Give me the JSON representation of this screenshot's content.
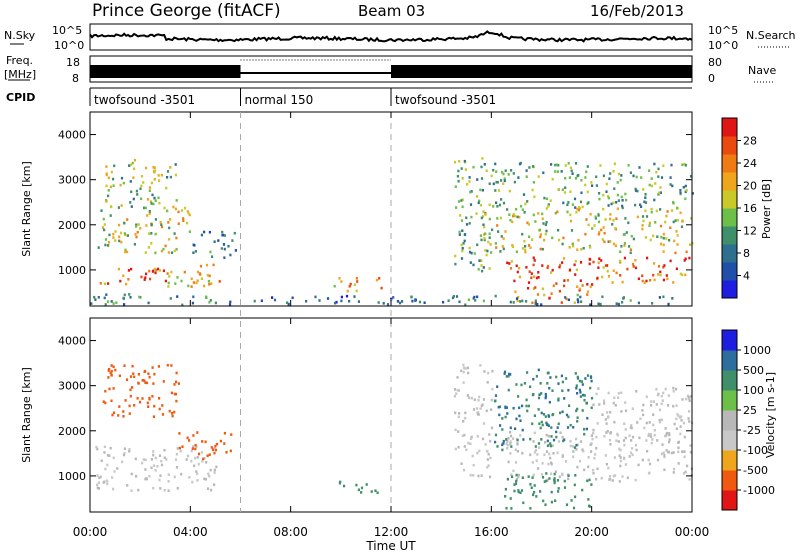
{
  "header": {
    "title": "Prince George (fitACF)",
    "beam": "Beam 03",
    "date": "16/Feb/2013"
  },
  "strip_labels": {
    "nsky": "N.Sky",
    "nsky_hi": "10^5",
    "nsky_lo": "10^0",
    "nsearch": "N.Search",
    "freq": "Freq.",
    "freq_unit": "[MHz]",
    "freq_hi": "18",
    "freq_lo": "8",
    "nave_hi": "80",
    "nave_lo": "0",
    "nave": "Nave",
    "cpid": "CPID"
  },
  "cpid_segments": [
    {
      "label": "twofsound -3501",
      "start_h": 0,
      "end_h": 6
    },
    {
      "label": "normal 150",
      "start_h": 6,
      "end_h": 12
    },
    {
      "label": "twofsound -3501",
      "start_h": 12,
      "end_h": 24
    }
  ],
  "x_axis": {
    "label": "Time UT",
    "ticks": [
      "00:00",
      "04:00",
      "08:00",
      "12:00",
      "16:00",
      "20:00",
      "00:00"
    ]
  },
  "colors": {
    "power": [
      "#1e1ee0",
      "#1f4fa8",
      "#2e6e8e",
      "#3f8f6a",
      "#6cc04a",
      "#c9c92a",
      "#f0a61c",
      "#f07a14",
      "#ea4a10",
      "#e01515"
    ],
    "velocity": [
      "#e01515",
      "#f05a10",
      "#f0a61c",
      "#c8c8c8",
      "#b8b8b8",
      "#6cc04a",
      "#3f8f6a",
      "#2e6e9e",
      "#1e1ee0"
    ]
  },
  "chart_data": [
    {
      "type": "heatmap",
      "ylabel": "Slant Range [km]",
      "yticks": [
        "1000",
        "2000",
        "3000",
        "4000"
      ],
      "ylim": [
        200,
        4500
      ],
      "xlim": [
        0,
        24
      ],
      "colorbar_label": "Power [dB]",
      "colorbar_ticks": [
        "4",
        "8",
        "12",
        "16",
        "20",
        "24",
        "28"
      ],
      "colorbar_range": [
        0,
        30
      ],
      "echo_regions": [
        {
          "t0": 0.0,
          "t1": 5.8,
          "r0": 250,
          "r1": 500,
          "v": 8
        },
        {
          "t0": 0.2,
          "t1": 3.0,
          "r0": 700,
          "r1": 1100,
          "v": 26
        },
        {
          "t0": 3.0,
          "t1": 5.2,
          "r0": 600,
          "r1": 1200,
          "v": 18
        },
        {
          "t0": 0.3,
          "t1": 4.0,
          "r0": 1400,
          "r1": 2400,
          "v": 16
        },
        {
          "t0": 0.5,
          "t1": 3.5,
          "r0": 2400,
          "r1": 3500,
          "v": 14
        },
        {
          "t0": 4.0,
          "t1": 5.8,
          "r0": 1300,
          "r1": 1900,
          "v": 8
        },
        {
          "t0": 9.6,
          "t1": 11.6,
          "r0": 550,
          "r1": 850,
          "v": 20
        },
        {
          "t0": 6.5,
          "t1": 13.0,
          "r0": 250,
          "r1": 450,
          "v": 6
        },
        {
          "t0": 14.5,
          "t1": 16.0,
          "r0": 1000,
          "r1": 3500,
          "v": 12
        },
        {
          "t0": 16.5,
          "t1": 24.0,
          "r0": 700,
          "r1": 1300,
          "v": 24
        },
        {
          "t0": 16.8,
          "t1": 20.0,
          "r0": 300,
          "r1": 700,
          "v": 22
        },
        {
          "t0": 15.5,
          "t1": 24.0,
          "r0": 1400,
          "r1": 2400,
          "v": 16
        },
        {
          "t0": 16.0,
          "t1": 24.0,
          "r0": 2400,
          "r1": 3400,
          "v": 12
        },
        {
          "t0": 12.0,
          "t1": 24.0,
          "r0": 250,
          "r1": 450,
          "v": 8
        }
      ]
    },
    {
      "type": "heatmap",
      "ylabel": "Slant Range [km]",
      "yticks": [
        "1000",
        "2000",
        "3000",
        "4000"
      ],
      "ylim": [
        200,
        4500
      ],
      "xlim": [
        0,
        24
      ],
      "colorbar_label": "Velocity [m s-1]",
      "colorbar_ticks": [
        "1000",
        "500",
        "100",
        "25",
        "-25",
        "-100",
        "-500",
        "-1000"
      ],
      "echo_regions": [
        {
          "t0": 0.2,
          "t1": 5.0,
          "r0": 700,
          "r1": 1700,
          "v": 0
        },
        {
          "t0": 3.5,
          "t1": 5.6,
          "r0": 1400,
          "r1": 2000,
          "v": -300
        },
        {
          "t0": 0.5,
          "t1": 3.5,
          "r0": 2300,
          "r1": 3500,
          "v": -150
        },
        {
          "t0": 9.6,
          "t1": 11.6,
          "r0": 650,
          "r1": 900,
          "v": 200
        },
        {
          "t0": 14.5,
          "t1": 16.0,
          "r0": 1000,
          "r1": 3500,
          "v": 0
        },
        {
          "t0": 16.5,
          "t1": 24.0,
          "r0": 900,
          "r1": 2000,
          "v": 0
        },
        {
          "t0": 16.5,
          "t1": 20.0,
          "r0": 300,
          "r1": 1100,
          "v": 150
        },
        {
          "t0": 16.0,
          "t1": 20.0,
          "r0": 1600,
          "r1": 3400,
          "v": 500
        },
        {
          "t0": 20.0,
          "t1": 24.0,
          "r0": 1800,
          "r1": 3000,
          "v": 0
        }
      ]
    }
  ]
}
